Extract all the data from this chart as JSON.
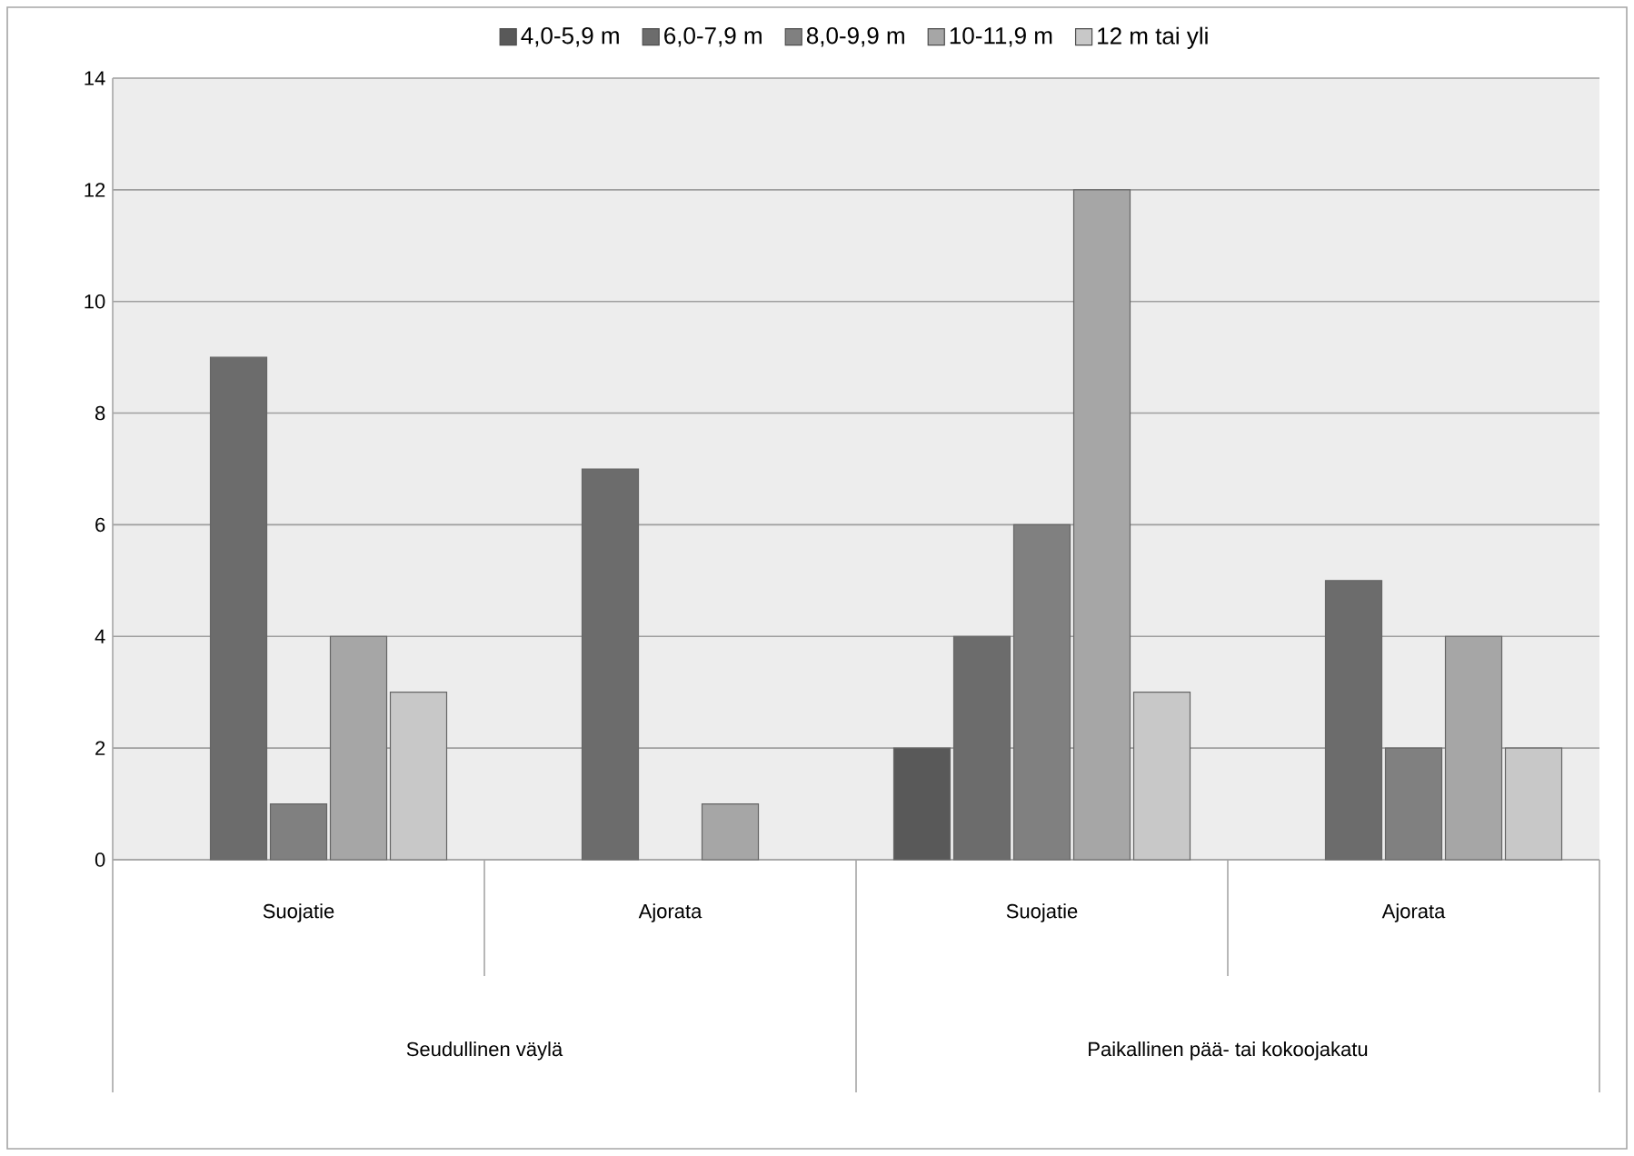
{
  "chart_data": {
    "type": "bar",
    "categories": [
      "Suojatie",
      "Ajorata",
      "Suojatie",
      "Ajorata"
    ],
    "series": [
      {
        "name": "4,0-5,9 m",
        "color": "#595959",
        "values": [
          null,
          null,
          2,
          null
        ]
      },
      {
        "name": "6,0-7,9 m",
        "color": "#6c6c6c",
        "values": [
          9,
          7,
          4,
          5
        ]
      },
      {
        "name": "8,0-9,9 m",
        "color": "#808080",
        "values": [
          1,
          null,
          6,
          2
        ]
      },
      {
        "name": "10-11,9 m",
        "color": "#a6a6a6",
        "values": [
          4,
          1,
          12,
          4
        ]
      },
      {
        "name": "12 m tai yli",
        "color": "#c8c8c8",
        "values": [
          3,
          null,
          3,
          2
        ]
      }
    ],
    "annotations": [
      "Seudullinen väylä",
      "Paikallinen pää- tai kokoojakatu"
    ],
    "ylim": [
      0,
      14
    ],
    "yticks": [
      0,
      2,
      4,
      6,
      8,
      10,
      12,
      14
    ],
    "grid": "y",
    "legend": "top"
  }
}
